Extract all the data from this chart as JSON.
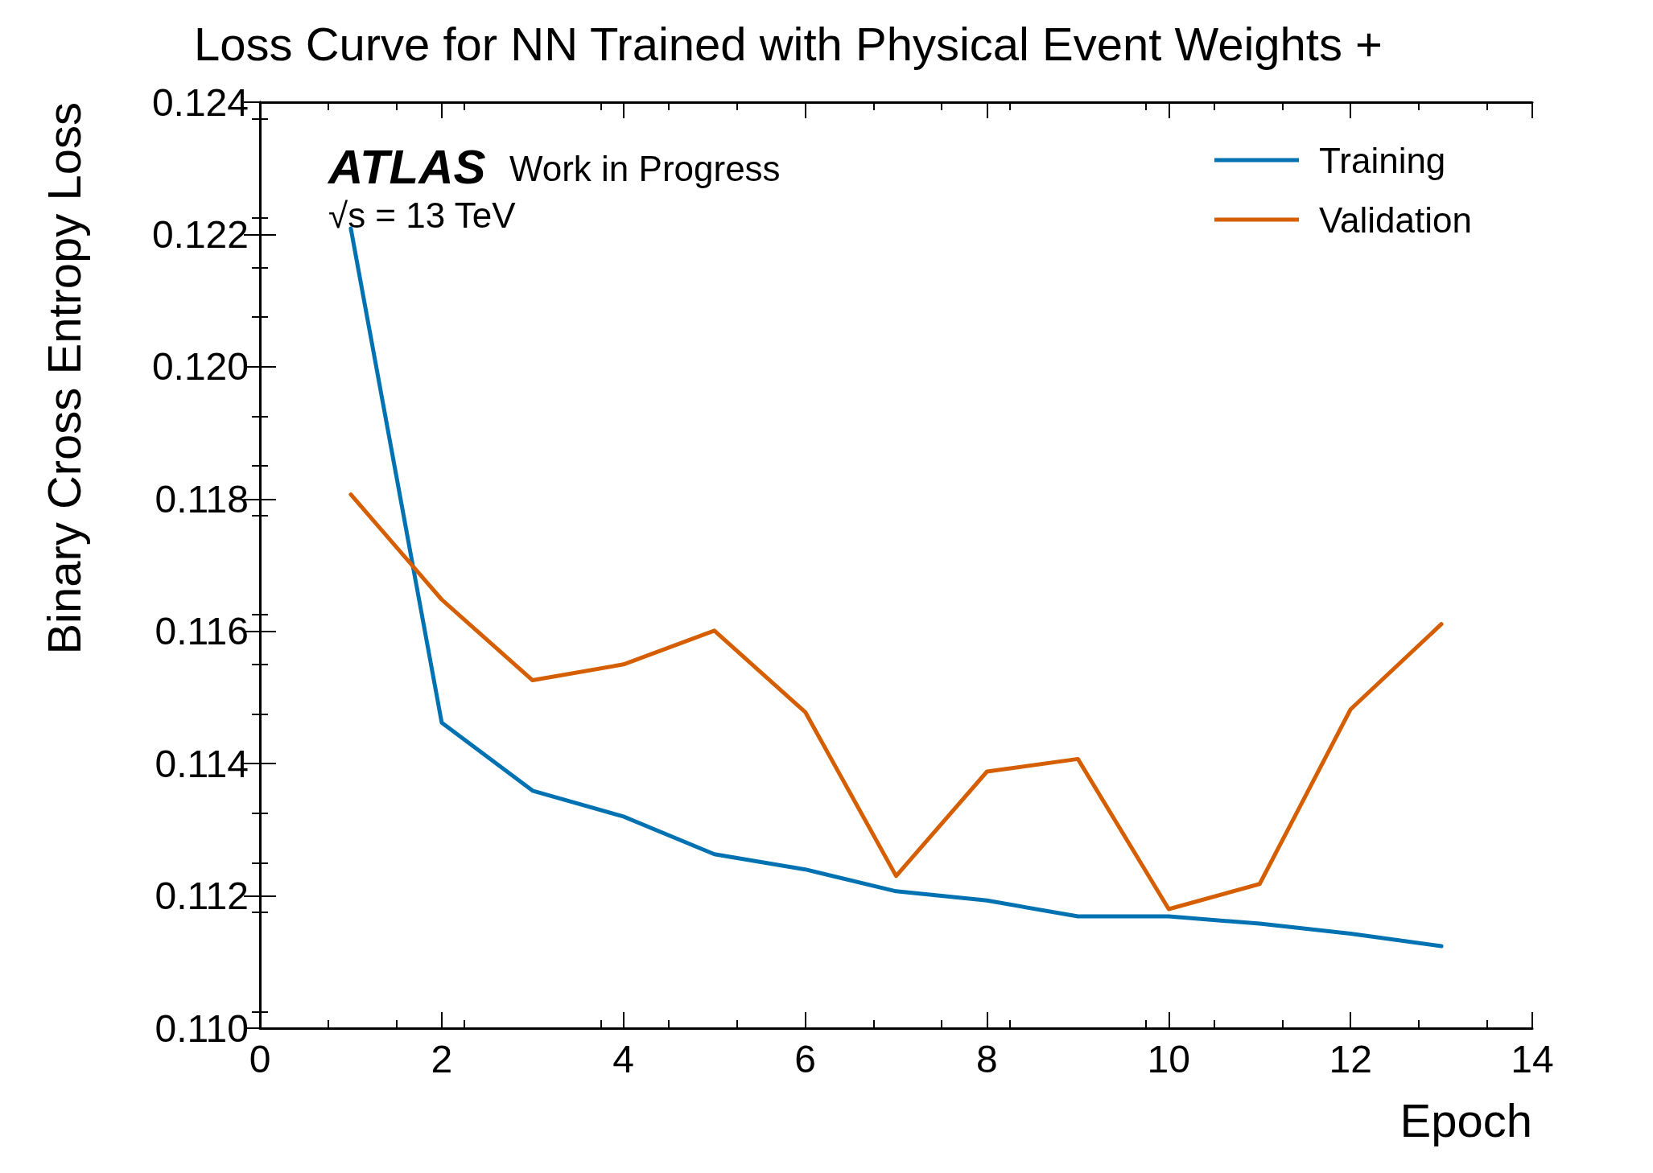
{
  "chart_data": {
    "type": "line",
    "title": "Loss Curve for NN Trained with Physical Event Weights +",
    "xlabel": "Epoch",
    "ylabel": "Binary Cross Entropy Loss",
    "annotations": [
      "ATLAS",
      "Work in Progress",
      "√s = 13 TeV"
    ],
    "x": [
      1,
      2,
      3,
      4,
      5,
      6,
      7,
      8,
      9,
      10,
      11,
      12,
      13
    ],
    "series": [
      {
        "name": "Training",
        "color": "#0072b2",
        "values": [
          0.12209,
          0.11462,
          0.11359,
          0.1132,
          0.11263,
          0.1124,
          0.11207,
          0.11193,
          0.11169,
          0.11169,
          0.11158,
          0.11143,
          0.11124
        ]
      },
      {
        "name": "Validation",
        "color": "#d55e00",
        "values": [
          0.11807,
          0.11648,
          0.11526,
          0.1155,
          0.11601,
          0.11478,
          0.1123,
          0.11388,
          0.11407,
          0.1118,
          0.11218,
          0.11482,
          0.11611
        ]
      }
    ],
    "xlim": [
      0,
      14
    ],
    "xticks": [
      0,
      2,
      4,
      6,
      8,
      10,
      12,
      14
    ],
    "ylim": [
      0.11,
      0.124
    ],
    "yticks": [
      {
        "value": 0.11,
        "label": "0.110"
      },
      {
        "value": 0.112,
        "label": "0.112"
      },
      {
        "value": 0.114,
        "label": "0.114"
      },
      {
        "value": 0.116,
        "label": "0.116"
      },
      {
        "value": 0.118,
        "label": "0.118"
      },
      {
        "value": 0.12,
        "label": "0.120"
      },
      {
        "value": 0.122,
        "label": "0.122"
      },
      {
        "value": 0.124,
        "label": "0.124"
      }
    ],
    "grid": false,
    "legend": "top right",
    "marker": "none",
    "line_style": "solid"
  }
}
